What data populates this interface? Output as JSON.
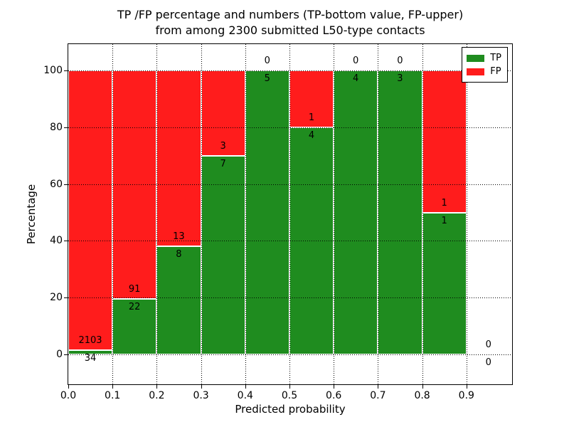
{
  "title": {
    "line1": "TP /FP percentage and numbers (TP-bottom value, FP-upper)",
    "line2": "from among 2300 submitted L50-type contacts"
  },
  "axes": {
    "ylabel": "Percentage",
    "xlabel": "Predicted probability",
    "ytick_labels": [
      "0",
      "20",
      "40",
      "60",
      "80",
      "100"
    ],
    "xtick_labels": [
      "0.0",
      "0.1",
      "0.2",
      "0.3",
      "0.4",
      "0.5",
      "0.6",
      "0.7",
      "0.8",
      "0.9"
    ]
  },
  "legend": [
    {
      "label": "TP",
      "color": "#1f8c1f"
    },
    {
      "label": "FP",
      "color": "#ff1c1c"
    }
  ],
  "chart_data": {
    "type": "bar",
    "stacked": true,
    "title": "TP /FP percentage and numbers (TP-bottom value, FP-upper) from among 2300 submitted L50-type contacts",
    "xlabel": "Predicted probability",
    "ylabel": "Percentage",
    "total_contacts": 2300,
    "bin_edges": [
      0.0,
      0.1,
      0.2,
      0.3,
      0.4,
      0.5,
      0.6,
      0.7,
      0.8,
      0.9,
      1.0
    ],
    "categories": [
      "0.0-0.1",
      "0.1-0.2",
      "0.2-0.3",
      "0.3-0.4",
      "0.4-0.5",
      "0.5-0.6",
      "0.6-0.7",
      "0.7-0.8",
      "0.8-0.9",
      "0.9-1.0"
    ],
    "series": [
      {
        "name": "TP",
        "color": "#1f8c1f",
        "counts": [
          34,
          22,
          8,
          7,
          5,
          4,
          4,
          3,
          1,
          0
        ],
        "percent": [
          1.59,
          19.47,
          38.1,
          70,
          100,
          80,
          100,
          100,
          50,
          0
        ]
      },
      {
        "name": "FP",
        "color": "#ff1c1c",
        "counts": [
          2103,
          91,
          13,
          3,
          0,
          1,
          0,
          0,
          1,
          0
        ],
        "percent": [
          98.41,
          80.53,
          61.9,
          30,
          0,
          20,
          0,
          0,
          50,
          0
        ]
      }
    ],
    "xticks": [
      0.0,
      0.1,
      0.2,
      0.3,
      0.4,
      0.5,
      0.6,
      0.7,
      0.8,
      0.9
    ],
    "yticks": [
      0,
      20,
      40,
      60,
      80,
      100
    ],
    "xlim": [
      0,
      1.003
    ],
    "ylim": [
      -10.5,
      109.5
    ],
    "grid": true,
    "grid_style": "dotted",
    "grid_above_bars": true,
    "legend_position": "upper right",
    "annotation_rule": "FP count above segment boundary, TP count below segment boundary"
  }
}
